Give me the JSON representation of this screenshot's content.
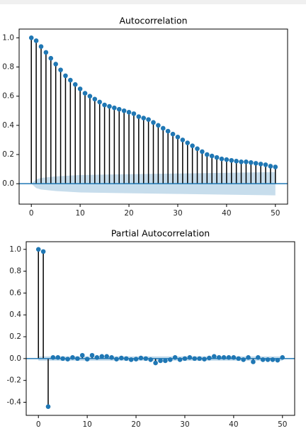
{
  "chart_data": [
    {
      "type": "stem",
      "title": "Autocorrelation",
      "color": "#1f77b4",
      "stem_color": "#000000",
      "x": [
        0,
        1,
        2,
        3,
        4,
        5,
        6,
        7,
        8,
        9,
        10,
        11,
        12,
        13,
        14,
        15,
        16,
        17,
        18,
        19,
        20,
        21,
        22,
        23,
        24,
        25,
        26,
        27,
        28,
        29,
        30,
        31,
        32,
        33,
        34,
        35,
        36,
        37,
        38,
        39,
        40,
        41,
        42,
        43,
        44,
        45,
        46,
        47,
        48,
        49,
        50
      ],
      "values": [
        1.0,
        0.98,
        0.94,
        0.9,
        0.86,
        0.82,
        0.78,
        0.74,
        0.71,
        0.68,
        0.65,
        0.62,
        0.6,
        0.58,
        0.56,
        0.54,
        0.53,
        0.52,
        0.51,
        0.5,
        0.49,
        0.48,
        0.46,
        0.45,
        0.44,
        0.42,
        0.4,
        0.38,
        0.36,
        0.34,
        0.32,
        0.3,
        0.28,
        0.26,
        0.24,
        0.22,
        0.2,
        0.19,
        0.18,
        0.17,
        0.165,
        0.16,
        0.155,
        0.15,
        0.15,
        0.145,
        0.14,
        0.135,
        0.13,
        0.12,
        0.115
      ],
      "band_x": [
        0,
        1,
        2,
        5,
        10,
        20,
        30,
        40,
        50
      ],
      "band": [
        0,
        0.03,
        0.04,
        0.05,
        0.06,
        0.065,
        0.07,
        0.075,
        0.08
      ],
      "xlim": [
        -2.5,
        52.5
      ],
      "xticks": [
        0,
        10,
        20,
        30,
        40,
        50
      ],
      "ylim": [
        -0.14,
        1.06
      ],
      "yticks": [
        {
          "value": 0,
          "label": "0.0"
        },
        {
          "value": 0.2,
          "label": "0.2"
        },
        {
          "value": 0.4,
          "label": "0.4"
        },
        {
          "value": 0.6,
          "label": "0.6"
        },
        {
          "value": 0.8,
          "label": "0.8"
        },
        {
          "value": 1,
          "label": "1.0"
        }
      ]
    },
    {
      "type": "stem",
      "title": "Partial Autocorrelation",
      "color": "#1f77b4",
      "stem_color": "#000000",
      "x": [
        0,
        1,
        2,
        3,
        4,
        5,
        6,
        7,
        8,
        9,
        10,
        11,
        12,
        13,
        14,
        15,
        16,
        17,
        18,
        19,
        20,
        21,
        22,
        23,
        24,
        25,
        26,
        27,
        28,
        29,
        30,
        31,
        32,
        33,
        34,
        35,
        36,
        37,
        38,
        39,
        40,
        41,
        42,
        43,
        44,
        45,
        46,
        47,
        48,
        49,
        50
      ],
      "values": [
        1.0,
        0.98,
        -0.44,
        0.01,
        0.01,
        0.0,
        -0.005,
        0.01,
        0.0,
        0.03,
        -0.005,
        0.03,
        0.01,
        0.02,
        0.02,
        0.01,
        -0.005,
        0.005,
        0.0,
        -0.01,
        -0.005,
        0.005,
        0.0,
        -0.01,
        -0.04,
        -0.02,
        -0.02,
        -0.01,
        0.01,
        -0.01,
        0.0,
        0.01,
        0.0,
        0.0,
        -0.005,
        0.005,
        0.02,
        0.01,
        0.01,
        0.01,
        0.01,
        0.0,
        -0.01,
        0.01,
        -0.03,
        0.01,
        -0.01,
        -0.01,
        -0.01,
        -0.015,
        0.01
      ],
      "band_x": [
        0,
        50
      ],
      "band": [
        0.02,
        0.02
      ],
      "xlim": [
        -2.5,
        52.5
      ],
      "xticks": [
        0,
        10,
        20,
        30,
        40,
        50
      ],
      "ylim": [
        -0.52,
        1.07
      ],
      "yticks": [
        {
          "value": -0.4,
          "label": "-0.4"
        },
        {
          "value": -0.2,
          "label": "-0.2"
        },
        {
          "value": 0,
          "label": "0.0"
        },
        {
          "value": 0.2,
          "label": "0.2"
        },
        {
          "value": 0.4,
          "label": "0.4"
        },
        {
          "value": 0.6,
          "label": "0.6"
        },
        {
          "value": 0.8,
          "label": "0.8"
        },
        {
          "value": 1,
          "label": "1.0"
        }
      ]
    }
  ]
}
